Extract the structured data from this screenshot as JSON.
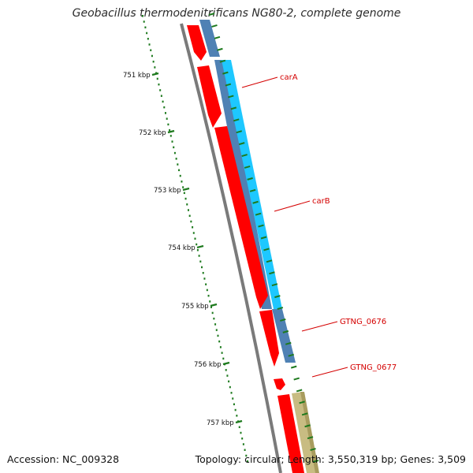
{
  "title": "Geobacillus thermodenitrificans NG80-2, complete genome",
  "footer": {
    "accession": "Accession: NC_009328",
    "summary": "Topology: circular; Length: 3,550,319 bp; Genes: 3,509"
  },
  "colors": {
    "backbone": "#7a7a7a",
    "forward_cds": "#ff0000",
    "reverse_cds": "#4f81b4",
    "operon_highlight": "#1ec8ff",
    "other_feature": "#c8bc82",
    "tick": "#1e7a1e",
    "gene_label": "#d40000"
  },
  "ticks": [
    {
      "label": "751 kbp"
    },
    {
      "label": "752 kbp"
    },
    {
      "label": "753 kbp"
    },
    {
      "label": "754 kbp"
    },
    {
      "label": "755 kbp"
    },
    {
      "label": "756 kbp"
    },
    {
      "label": "757 kbp"
    }
  ],
  "genes": [
    {
      "label": "carA"
    },
    {
      "label": "carB"
    },
    {
      "label": "GTNG_0676"
    },
    {
      "label": "GTNG_0677"
    }
  ]
}
